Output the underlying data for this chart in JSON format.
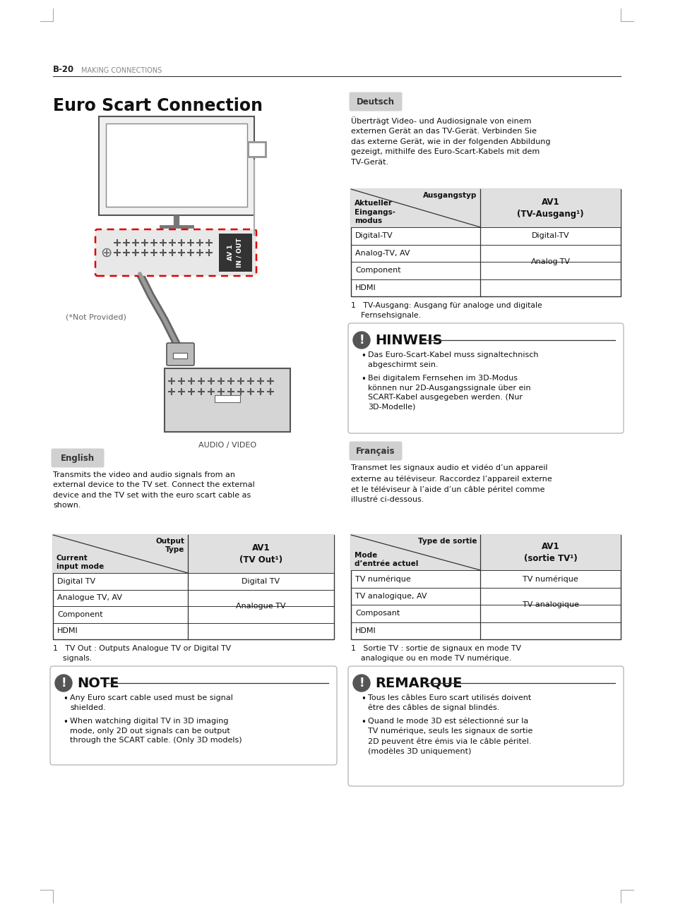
{
  "page_header_bold": "B-20",
  "page_header_light": "MAKING CONNECTIONS",
  "title": "Euro Scart Connection",
  "bg_color": "#ffffff",
  "section_label_en": "English",
  "section_label_de": "Deutsch",
  "section_label_fr": "Français",
  "en_paragraph": "Transmits the video and audio signals from an\nexternal device to the TV set. Connect the external\ndevice and the TV set with the euro scart cable as\nshown.",
  "en_table_rows": [
    [
      "Digital TV",
      "Digital TV"
    ],
    [
      "Analogue TV, AV",
      ""
    ],
    [
      "Component",
      "Analogue TV"
    ],
    [
      "HDMI",
      ""
    ]
  ],
  "en_footnote": "1   TV Out : Outputs Analogue TV or Digital TV\n    signals.",
  "en_note_title": "NOTE",
  "en_note_bullets": [
    "Any Euro scart cable used must be signal\nshielded.",
    "When watching digital TV in 3D imaging\nmode, only 2D out signals can be output\nthrough the SCART cable. (Only 3D models)"
  ],
  "de_paragraph": "Überträgt Video- und Audiosignale von einem\nexternen Gerät an das TV-Gerät. Verbinden Sie\ndas externe Gerät, wie in der folgenden Abbildung\ngezeigt, mithilfe des Euro-Scart-Kabels mit dem\nTV-Gerät.",
  "de_table_rows": [
    [
      "Digital-TV",
      "Digital-TV"
    ],
    [
      "Analog-TV, AV",
      ""
    ],
    [
      "Component",
      "Analog-TV"
    ],
    [
      "HDMI",
      ""
    ]
  ],
  "de_footnote": "1   TV-Ausgang: Ausgang für analoge und digitale\n    Fernsehsignale.",
  "de_note_title": "HINWEIS",
  "de_note_bullets": [
    "Das Euro-Scart-Kabel muss signaltechnisch\nabgeschirmt sein.",
    "Bei digitalem Fernsehen im 3D-Modus\nkönnen nur 2D-Ausgangssignale über ein\nSCART-Kabel ausgegeben werden. (Nur\n3D-Modelle)"
  ],
  "fr_paragraph": "Transmet les signaux audio et vidéo d’un appareil\nexterne au téléviseur. Raccordez l’appareil externe\net le téléviseur à l’aide d’un câble péritel comme\nillustré ci-dessous.",
  "fr_table_rows": [
    [
      "TV numérique",
      "TV numérique"
    ],
    [
      "TV analogique, AV",
      ""
    ],
    [
      "Composant",
      "TV analogique"
    ],
    [
      "HDMI",
      ""
    ]
  ],
  "fr_footnote": "1   Sortie TV : sortie de signaux en mode TV\n    analogique ou en mode TV numérique.",
  "fr_note_title": "REMARQUE",
  "fr_note_bullets": [
    "Tous les câbles Euro scart utilisés doivent\nêtre des câbles de signal blindés.",
    "Quand le mode 3D est sélectionné sur la\nTV numérique, seuls les signaux de sortie\n2D peuvent être émis via le câble péritel.\n(modèles 3D uniquement)"
  ]
}
